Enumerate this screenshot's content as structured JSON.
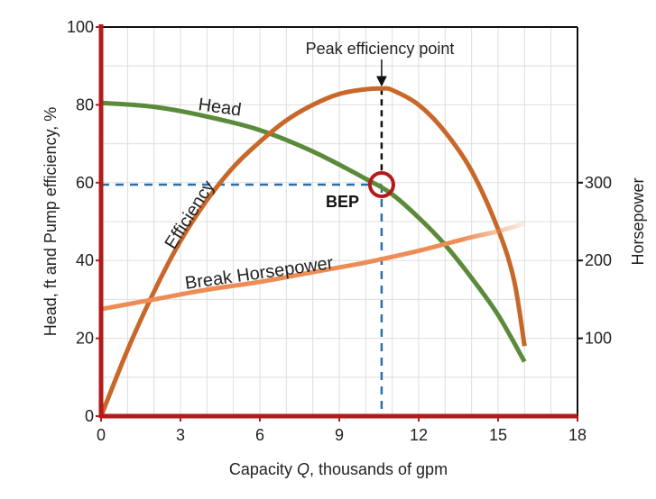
{
  "chart_data": {
    "type": "line",
    "xlabel_prefix": "Capacity ",
    "xlabel_var": "Q",
    "xlabel_suffix": ", thousands of gpm",
    "ylabel": "Head, ft  and  Pump efficiency, %",
    "y2label": "Horsepower",
    "xlim": [
      0,
      18
    ],
    "ylim": [
      0,
      100
    ],
    "y2lim": [
      0,
      500
    ],
    "grid": true,
    "x_ticks": [
      "0",
      "3",
      "6",
      "9",
      "12",
      "15",
      "18"
    ],
    "y_ticks": [
      "0",
      "20",
      "40",
      "60",
      "80",
      "100"
    ],
    "y2_ticks": [
      "100",
      "200",
      "300"
    ],
    "y2_tick_values": [
      100,
      200,
      300
    ],
    "series": [
      {
        "name": "Head",
        "color": "#5a8a3a",
        "x": [
          0,
          2,
          4,
          6,
          8,
          10,
          11,
          12,
          13,
          14,
          15,
          16
        ],
        "y": [
          80.5,
          79.5,
          77,
          73.5,
          68,
          61,
          57,
          51,
          44,
          35.5,
          26,
          14
        ]
      },
      {
        "name": "Efficiency",
        "color": "#c8672a",
        "x": [
          0,
          1,
          2,
          3,
          4,
          5,
          6,
          7,
          8,
          9,
          10,
          10.6,
          11,
          12,
          13,
          14,
          15,
          15.6,
          16
        ],
        "y": [
          0,
          17,
          32,
          45,
          55.5,
          64,
          70.5,
          76,
          80,
          82.8,
          84,
          84.2,
          83.8,
          80,
          73,
          63,
          48,
          35,
          18
        ]
      },
      {
        "name": "Break Horsepower",
        "color": "#ee8c55",
        "x": [
          0,
          2,
          4,
          6,
          8,
          10,
          12,
          14,
          15,
          16
        ],
        "y": [
          27.5,
          30,
          32.5,
          34.5,
          37,
          39.5,
          42.5,
          46,
          47.5,
          49.5
        ]
      }
    ],
    "bep": {
      "x": 10.6,
      "y": 59.5,
      "label": "BEP"
    },
    "annotations": [
      {
        "text": "Peak efficiency point",
        "x": 10.6,
        "y": 84.2
      }
    ],
    "colors": {
      "axis": "#b31b1b",
      "frame": "#111111",
      "grid": "#dddddd",
      "guide": "#2b6fa8",
      "bep_circle": "#b31b1b"
    }
  }
}
